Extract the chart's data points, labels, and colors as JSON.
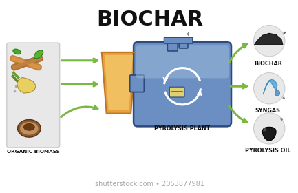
{
  "title": "BIOCHAR",
  "title_fontsize": 22,
  "title_fontweight": "bold",
  "background_color": "#ffffff",
  "left_box_label": "ORGANIC BIOMASS",
  "center_label": "PYROLYSIS PLANT",
  "right_labels": [
    "BIOCHAR",
    "SYNGAS",
    "PYROLYSIS OIL"
  ],
  "arrow_color": "#7ab840",
  "outline_color": "#2d4a7a",
  "reactor_body_color": "#6b8fc2",
  "reactor_highlight": "#9ab8d8",
  "reactor_dark": "#4a6fa5",
  "funnel_color": "#e8a040",
  "funnel_dark": "#c07820",
  "left_box_bg": "#e8e8e8",
  "right_circle_bg": "#e8e8e8",
  "watermark": "shutterstock.com • 2053877981",
  "watermark_color": "#aaaaaa",
  "watermark_fontsize": 7
}
